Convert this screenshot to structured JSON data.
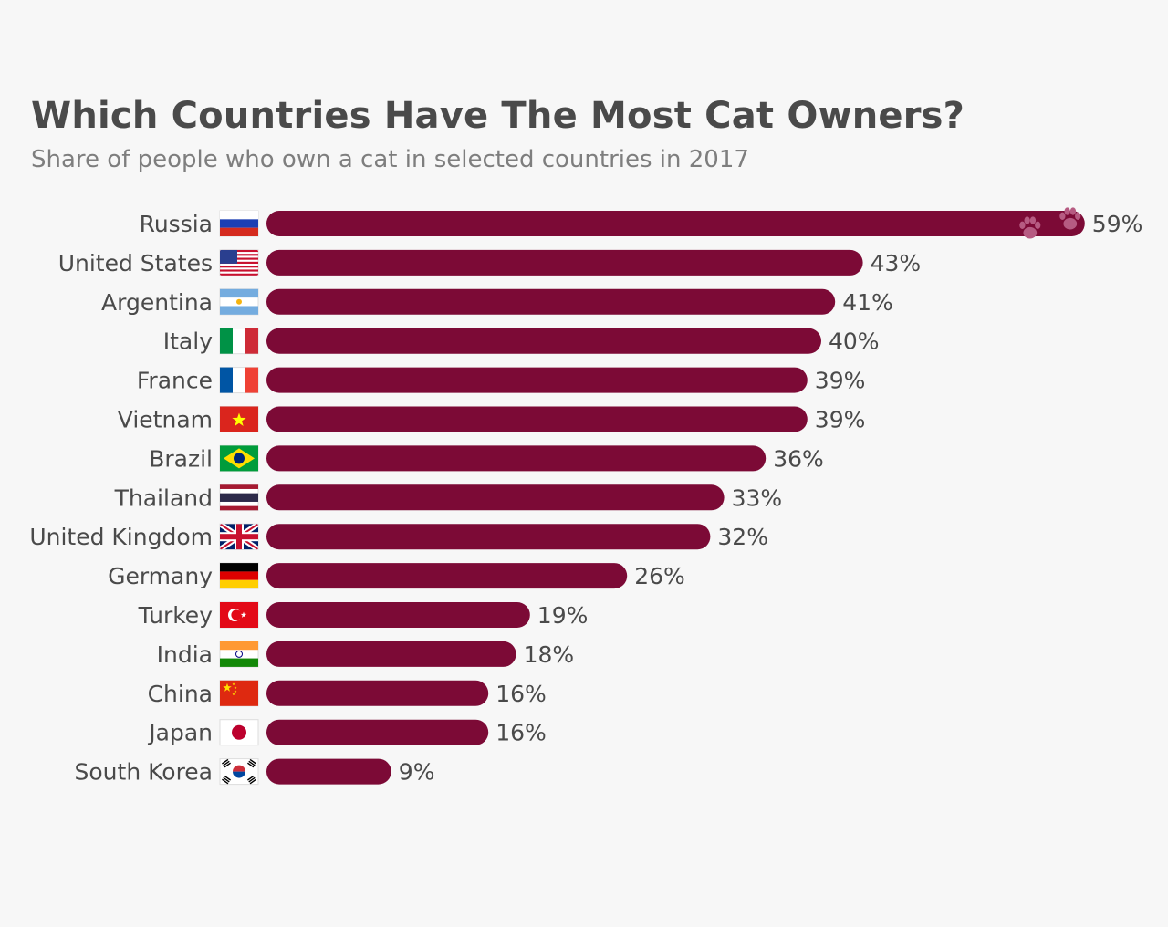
{
  "title": "Which Countries Have The Most Cat Owners?",
  "subtitle": "Share of people who own a cat in selected countries in 2017",
  "colors": {
    "bar": "#7c0a36",
    "paw": "#b65b82",
    "text": "#4a4a4a"
  },
  "chart_data": {
    "type": "bar",
    "orientation": "horizontal",
    "title": "Which Countries Have The Most Cat Owners?",
    "subtitle": "Share of people who own a cat in selected countries in 2017",
    "categories": [
      "Russia",
      "United States",
      "Argentina",
      "Italy",
      "France",
      "Vietnam",
      "Brazil",
      "Thailand",
      "United Kingdom",
      "Germany",
      "Turkey",
      "India",
      "China",
      "Japan",
      "South Korea"
    ],
    "values": [
      59,
      43,
      41,
      40,
      39,
      39,
      36,
      33,
      32,
      26,
      19,
      18,
      16,
      16,
      9
    ],
    "value_labels": [
      "59%",
      "43%",
      "41%",
      "40%",
      "39%",
      "39%",
      "36%",
      "33%",
      "32%",
      "26%",
      "19%",
      "18%",
      "16%",
      "16%",
      "9%"
    ],
    "flags": [
      "russia-flag-icon",
      "united-states-flag-icon",
      "argentina-flag-icon",
      "italy-flag-icon",
      "france-flag-icon",
      "vietnam-flag-icon",
      "brazil-flag-icon",
      "thailand-flag-icon",
      "united-kingdom-flag-icon",
      "germany-flag-icon",
      "turkey-flag-icon",
      "india-flag-icon",
      "china-flag-icon",
      "japan-flag-icon",
      "south-korea-flag-icon"
    ],
    "decoration": "cat-paw-icon",
    "xlim": [
      0,
      60
    ],
    "grid": false,
    "legend": "none"
  }
}
